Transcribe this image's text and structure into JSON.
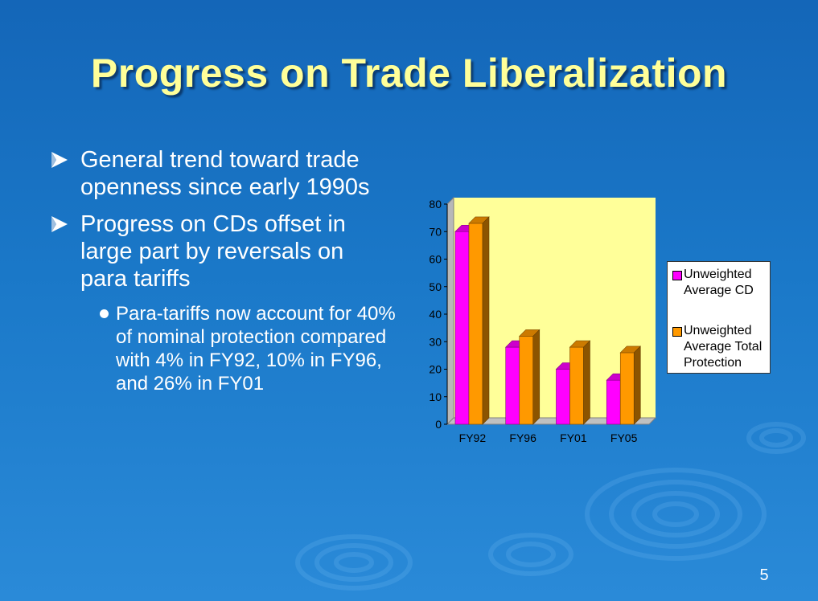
{
  "slide": {
    "title": "Progress on Trade Liberalization",
    "bullets": [
      "General trend toward trade openness since early 1990s",
      "Progress on CDs offset in large part by reversals on para tariffs"
    ],
    "sub_bullets": [
      "Para-tariffs now account for 40% of nominal protection compared with 4% in FY92, 10% in FY96, and 26% in FY01"
    ],
    "slide_number": "5"
  },
  "colors": {
    "background": "#1a78c8",
    "title": "#ffff99",
    "plot_area": "#ffff99",
    "series_cd": "#ff00ff",
    "series_total": "#ff9900"
  },
  "chart_data": {
    "type": "bar",
    "categories": [
      "FY92",
      "FY96",
      "FY01",
      "FY05"
    ],
    "series": [
      {
        "name": "Unweighted Average CD",
        "values": [
          70,
          28,
          20,
          16
        ],
        "color": "#ff00ff"
      },
      {
        "name": "Unweighted Average Total Protection",
        "values": [
          73,
          32,
          28,
          26
        ],
        "color": "#ff9900"
      }
    ],
    "yticks": [
      "0",
      "10",
      "20",
      "30",
      "40",
      "50",
      "60",
      "70",
      "80"
    ],
    "ylim": [
      0,
      80
    ],
    "grid": false,
    "legend_position": "right",
    "style": "3d-column"
  }
}
